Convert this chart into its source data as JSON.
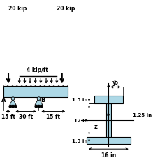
{
  "bg_color": "#ffffff",
  "beam_color": "#add8e6",
  "label_20kip_left": "20 kip",
  "label_20kip_right": "20 kip",
  "label_dist": "4 kip/ft",
  "label_A": "A",
  "label_B": "B",
  "label_30ft": "30 ft",
  "label_15ft_left": "15 ft",
  "label_15ft_right": "15 ft",
  "label_y": "y",
  "label_b": "b",
  "label_z": "z",
  "label_1p5top": "1.5 in",
  "label_12in": "12 in",
  "label_1p5bot": "1.5 in",
  "label_1p25in": "1.25 in",
  "label_16in": "16 in"
}
